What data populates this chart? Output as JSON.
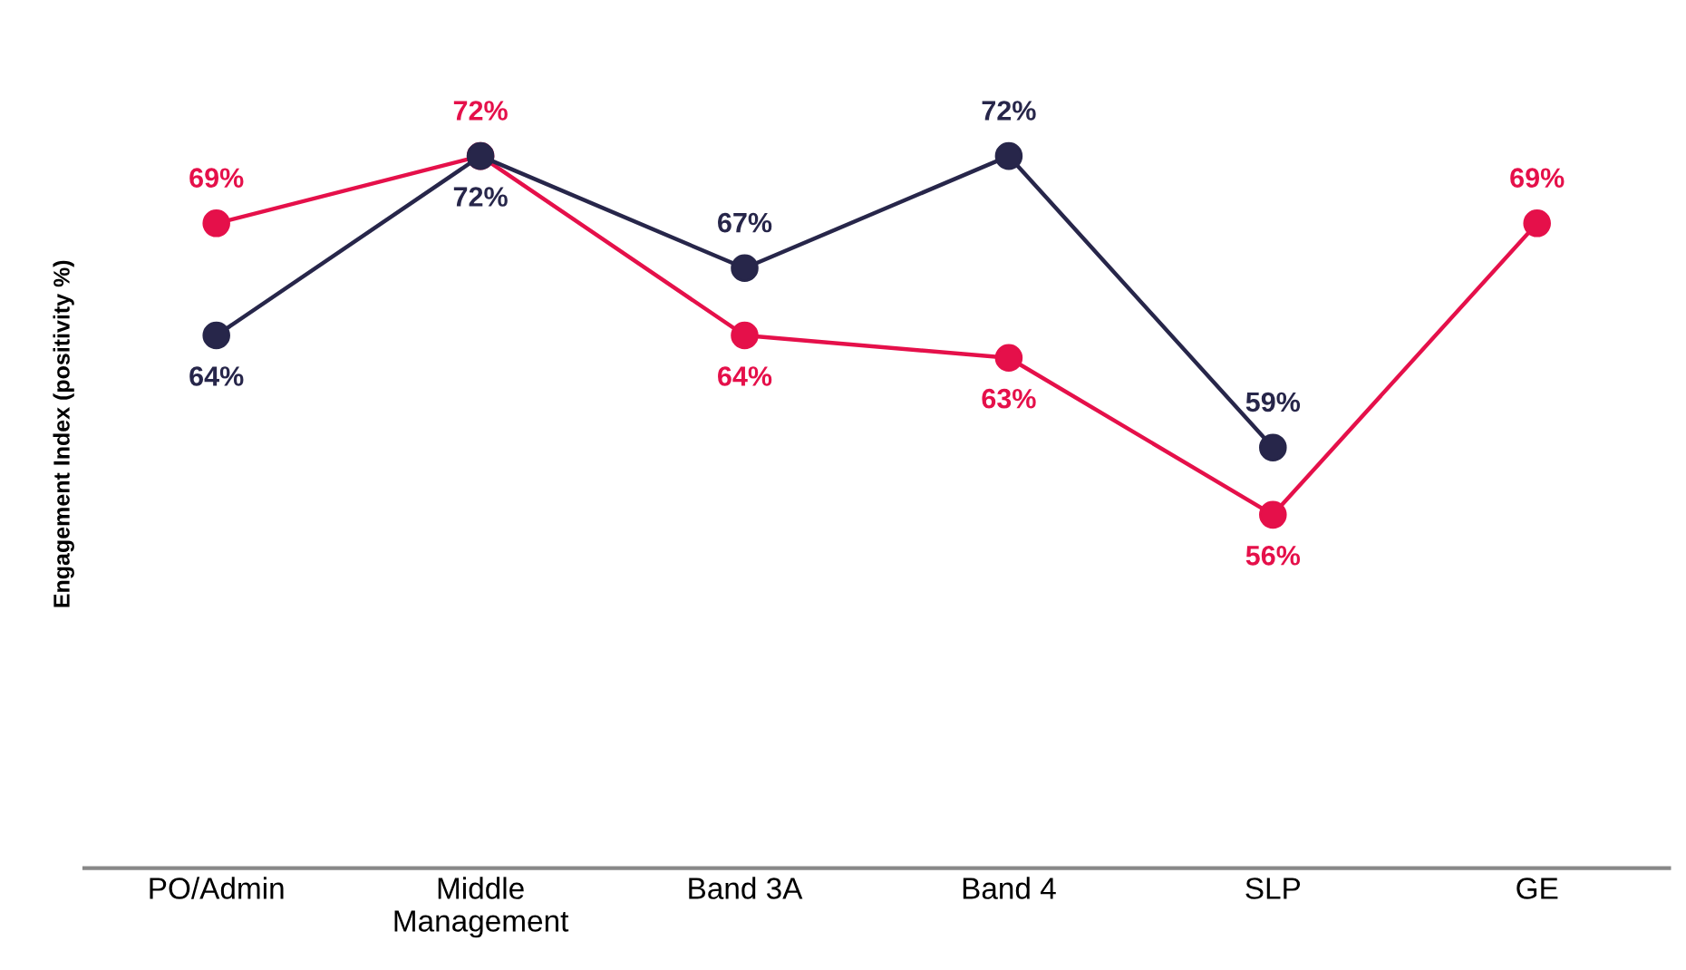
{
  "chart_data": {
    "type": "line",
    "ylabel": "Engagement Index (positivity %)",
    "categories": [
      "PO/Admin",
      "Middle\nManagement",
      "Band 3A",
      "Band 4",
      "SLP",
      "GE"
    ],
    "series": [
      {
        "color": "#e5104a",
        "values": [
          69,
          72,
          64,
          63,
          56,
          69
        ],
        "value_labels": [
          "69%",
          "72%",
          "64%",
          "63%",
          "56%",
          "69%"
        ]
      },
      {
        "color": "#27264a",
        "values": [
          64,
          72,
          67,
          72,
          59,
          null
        ],
        "value_labels": [
          "64%",
          "72%",
          "67%",
          "72%",
          "59%",
          null
        ]
      }
    ],
    "tick_labels": "x",
    "grid": false,
    "legend": false,
    "marker": "circle",
    "line_style": "solid"
  }
}
